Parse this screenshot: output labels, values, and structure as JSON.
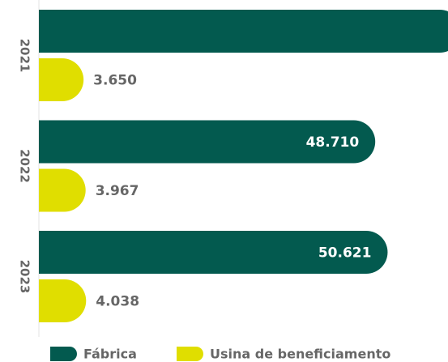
{
  "chart_data": {
    "type": "bar",
    "orientation": "horizontal",
    "categories": [
      "2021",
      "2022",
      "2023"
    ],
    "series": [
      {
        "name": "Fábrica",
        "color": "#035a4f",
        "values": [
          62000,
          48710,
          50621
        ],
        "value_labels": [
          null,
          "48.710",
          "50.621"
        ]
      },
      {
        "name": "Usina de beneficiamento",
        "color": "#e0de00",
        "values": [
          3650,
          3967,
          4038
        ],
        "value_labels": [
          "3.650",
          "3.967",
          "4.038"
        ]
      }
    ],
    "xlim": [
      0,
      60000
    ],
    "legend": "bottom"
  }
}
